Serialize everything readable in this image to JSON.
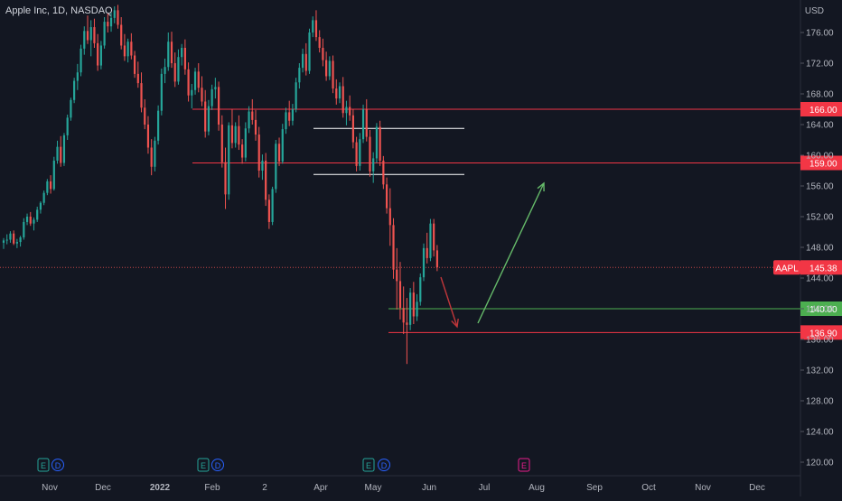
{
  "header": {
    "title": "Apple Inc, 1D, NASDAQ",
    "currency": "USD"
  },
  "chart_data": {
    "type": "candlestick",
    "title": "Apple Inc, 1D, NASDAQ",
    "symbol": "AAPL",
    "current_price": 145.38,
    "ylim": [
      119,
      178
    ],
    "y_ticks": [
      "176.00",
      "172.00",
      "168.00",
      "164.00",
      "160.00",
      "156.00",
      "152.00",
      "148.00",
      "144.00",
      "140.00",
      "136.00",
      "132.00",
      "128.00",
      "124.00",
      "120.00"
    ],
    "x_ticks": [
      "Nov",
      "Dec",
      "2022",
      "Feb",
      "2",
      "Apr",
      "May",
      "Jun",
      "Jul",
      "Aug",
      "Sep",
      "Oct",
      "Nov",
      "Dec"
    ],
    "horizontal_levels": [
      {
        "price": 166.0,
        "label": "166.00",
        "color": "#f23645"
      },
      {
        "price": 159.0,
        "label": "159.00",
        "color": "#f23645"
      },
      {
        "price": 140.0,
        "label": "140.00",
        "color": "#4caf50"
      },
      {
        "price": 136.9,
        "label": "136.90",
        "color": "#f23645"
      }
    ],
    "range_lines": [
      163.5,
      157.5
    ],
    "price_tag": {
      "symbol": "AAPL",
      "value": "145.38"
    },
    "events": [
      "E",
      "D",
      "E",
      "D",
      "E",
      "D",
      "E"
    ],
    "candles": [
      [
        148.6,
        149.2,
        147.8,
        148.9
      ],
      [
        148.9,
        149.7,
        148.4,
        149.0
      ],
      [
        149.0,
        150.1,
        148.6,
        149.8
      ],
      [
        149.8,
        150.2,
        148.3,
        148.5
      ],
      [
        148.5,
        149.1,
        147.9,
        148.7
      ],
      [
        148.7,
        149.5,
        148.1,
        149.3
      ],
      [
        149.3,
        151.8,
        149.0,
        151.3
      ],
      [
        151.3,
        152.4,
        150.9,
        152.0
      ],
      [
        152.0,
        152.6,
        150.8,
        151.1
      ],
      [
        151.1,
        151.9,
        150.2,
        151.6
      ],
      [
        151.6,
        153.3,
        151.3,
        152.9
      ],
      [
        152.9,
        154.0,
        152.4,
        153.8
      ],
      [
        153.8,
        155.4,
        153.5,
        155.1
      ],
      [
        155.1,
        156.9,
        154.8,
        156.6
      ],
      [
        156.6,
        157.4,
        155.0,
        155.6
      ],
      [
        155.6,
        159.8,
        155.4,
        159.3
      ],
      [
        159.3,
        161.9,
        158.9,
        161.1
      ],
      [
        161.1,
        162.5,
        158.5,
        159.0
      ],
      [
        159.0,
        162.9,
        158.6,
        162.6
      ],
      [
        162.6,
        165.3,
        162.0,
        164.9
      ],
      [
        164.9,
        167.5,
        164.5,
        167.2
      ],
      [
        167.2,
        170.1,
        166.8,
        169.7
      ],
      [
        169.7,
        171.9,
        168.5,
        170.8
      ],
      [
        170.8,
        174.4,
        170.3,
        173.9
      ],
      [
        173.9,
        176.8,
        173.1,
        176.2
      ],
      [
        176.2,
        178.2,
        174.5,
        175.0
      ],
      [
        175.0,
        177.6,
        172.9,
        176.7
      ],
      [
        176.7,
        177.8,
        174.0,
        174.6
      ],
      [
        174.6,
        175.8,
        171.0,
        171.7
      ],
      [
        171.7,
        174.9,
        171.2,
        174.3
      ],
      [
        174.3,
        178.0,
        173.9,
        177.4
      ],
      [
        177.4,
        178.5,
        176.0,
        176.8
      ],
      [
        176.8,
        178.6,
        176.1,
        177.9
      ],
      [
        177.9,
        179.4,
        177.2,
        178.9
      ],
      [
        178.9,
        179.6,
        176.5,
        177.0
      ],
      [
        177.0,
        178.0,
        173.8,
        174.3
      ],
      [
        174.3,
        175.8,
        172.3,
        172.9
      ],
      [
        172.9,
        175.2,
        172.1,
        174.8
      ],
      [
        174.8,
        175.9,
        172.5,
        173.0
      ],
      [
        173.0,
        173.6,
        170.1,
        170.6
      ],
      [
        170.6,
        172.2,
        168.8,
        169.4
      ],
      [
        169.4,
        170.8,
        165.6,
        166.2
      ],
      [
        166.2,
        167.3,
        163.4,
        164.0
      ],
      [
        164.0,
        165.1,
        160.2,
        161.0
      ],
      [
        161.0,
        162.1,
        157.4,
        158.5
      ],
      [
        158.5,
        162.4,
        157.9,
        161.9
      ],
      [
        161.9,
        166.5,
        161.4,
        165.8
      ],
      [
        165.8,
        171.3,
        165.2,
        170.6
      ],
      [
        170.6,
        172.6,
        169.4,
        171.5
      ],
      [
        171.5,
        176.0,
        171.0,
        174.8
      ],
      [
        174.8,
        176.1,
        171.4,
        172.0
      ],
      [
        172.0,
        173.4,
        168.9,
        169.6
      ],
      [
        169.6,
        173.8,
        169.2,
        172.8
      ],
      [
        172.8,
        174.5,
        171.7,
        174.0
      ],
      [
        174.0,
        175.1,
        170.5,
        171.2
      ],
      [
        171.2,
        172.1,
        167.0,
        167.8
      ],
      [
        167.8,
        169.3,
        166.1,
        168.5
      ],
      [
        168.5,
        171.4,
        167.9,
        170.9
      ],
      [
        170.9,
        172.0,
        168.2,
        168.8
      ],
      [
        168.8,
        170.3,
        166.4,
        167.0
      ],
      [
        167.0,
        168.5,
        162.3,
        163.1
      ],
      [
        163.1,
        167.2,
        162.6,
        166.4
      ],
      [
        166.4,
        169.2,
        165.9,
        168.6
      ],
      [
        168.6,
        170.1,
        167.4,
        168.9
      ],
      [
        168.9,
        169.6,
        163.2,
        164.0
      ],
      [
        164.0,
        165.2,
        158.4,
        159.1
      ],
      [
        159.1,
        161.0,
        153.0,
        154.9
      ],
      [
        154.9,
        164.3,
        154.2,
        163.9
      ],
      [
        163.9,
        166.0,
        160.9,
        161.6
      ],
      [
        161.6,
        164.3,
        161.0,
        163.8
      ],
      [
        163.8,
        165.2,
        160.7,
        161.4
      ],
      [
        161.4,
        162.1,
        158.9,
        159.7
      ],
      [
        159.7,
        164.3,
        159.2,
        163.5
      ],
      [
        163.5,
        166.4,
        162.9,
        165.7
      ],
      [
        165.7,
        167.3,
        164.0,
        164.6
      ],
      [
        164.6,
        165.9,
        161.9,
        162.7
      ],
      [
        162.7,
        163.7,
        157.1,
        158.0
      ],
      [
        158.0,
        160.1,
        156.8,
        159.3
      ],
      [
        159.3,
        160.3,
        153.4,
        154.2
      ],
      [
        154.2,
        154.9,
        150.4,
        151.3
      ],
      [
        151.3,
        155.9,
        150.9,
        155.6
      ],
      [
        155.6,
        162.0,
        155.1,
        161.5
      ],
      [
        161.5,
        162.3,
        158.6,
        159.2
      ],
      [
        159.2,
        164.1,
        158.9,
        163.4
      ],
      [
        163.4,
        166.2,
        162.8,
        165.6
      ],
      [
        165.6,
        167.1,
        163.8,
        164.5
      ],
      [
        164.5,
        166.7,
        163.9,
        166.0
      ],
      [
        166.0,
        170.1,
        165.6,
        169.5
      ],
      [
        169.5,
        172.0,
        168.7,
        171.4
      ],
      [
        171.4,
        173.9,
        170.8,
        173.2
      ],
      [
        173.2,
        174.6,
        170.4,
        171.0
      ],
      [
        171.0,
        176.5,
        170.6,
        176.0
      ],
      [
        176.0,
        178.1,
        175.4,
        177.6
      ],
      [
        177.6,
        178.9,
        174.9,
        175.4
      ],
      [
        175.4,
        176.3,
        173.4,
        174.0
      ],
      [
        174.0,
        175.2,
        171.6,
        172.4
      ],
      [
        172.4,
        173.5,
        169.7,
        170.3
      ],
      [
        170.3,
        172.9,
        169.8,
        172.3
      ],
      [
        172.3,
        173.0,
        168.1,
        168.7
      ],
      [
        168.7,
        169.9,
        166.6,
        167.4
      ],
      [
        167.4,
        169.5,
        166.8,
        169.0
      ],
      [
        169.0,
        170.2,
        164.9,
        165.5
      ],
      [
        165.5,
        167.1,
        163.9,
        166.3
      ],
      [
        166.3,
        167.8,
        164.5,
        165.2
      ],
      [
        165.2,
        166.0,
        160.9,
        161.7
      ],
      [
        161.7,
        162.4,
        157.9,
        158.6
      ],
      [
        158.6,
        162.9,
        158.0,
        162.1
      ],
      [
        162.1,
        166.6,
        161.6,
        166.0
      ],
      [
        166.0,
        167.3,
        161.8,
        162.4
      ],
      [
        162.4,
        163.3,
        157.2,
        157.9
      ],
      [
        157.9,
        160.4,
        156.4,
        159.6
      ],
      [
        159.6,
        164.2,
        159.0,
        163.7
      ],
      [
        163.7,
        164.5,
        158.6,
        159.3
      ],
      [
        159.3,
        159.9,
        155.6,
        156.2
      ],
      [
        156.2,
        157.1,
        152.4,
        153.1
      ],
      [
        153.1,
        155.7,
        148.2,
        150.9
      ],
      [
        150.9,
        151.8,
        143.9,
        145.1
      ],
      [
        145.1,
        147.9,
        139.9,
        143.6
      ],
      [
        143.6,
        146.1,
        138.6,
        140.1
      ],
      [
        140.1,
        142.9,
        136.7,
        138.2
      ],
      [
        138.2,
        141.4,
        132.8,
        137.9
      ],
      [
        137.9,
        142.7,
        137.2,
        142.1
      ],
      [
        142.1,
        143.5,
        138.0,
        139.0
      ],
      [
        139.0,
        141.9,
        138.4,
        140.9
      ],
      [
        140.9,
        144.6,
        140.4,
        144.1
      ],
      [
        144.1,
        148.5,
        143.6,
        147.9
      ],
      [
        147.9,
        149.9,
        145.9,
        146.6
      ],
      [
        146.6,
        151.7,
        146.2,
        151.1
      ],
      [
        151.1,
        151.7,
        146.8,
        147.6
      ],
      [
        147.6,
        148.3,
        144.9,
        145.4
      ]
    ]
  }
}
